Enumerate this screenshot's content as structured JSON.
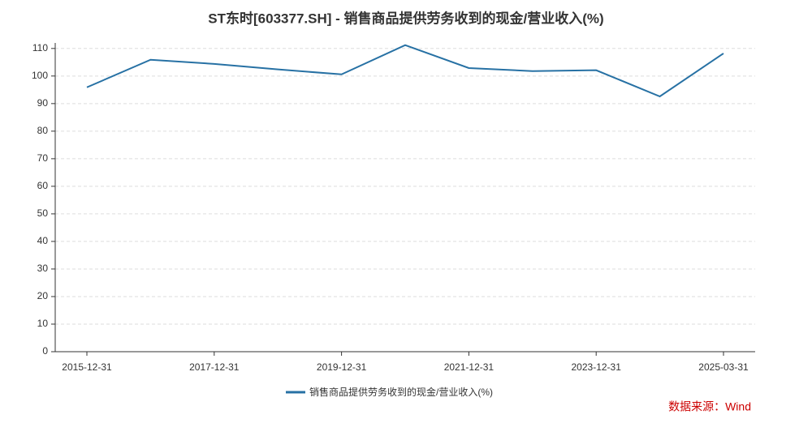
{
  "chart_data": {
    "type": "line",
    "title": "ST东时[603377.SH] - 销售商品提供劳务收到的现金/营业收入(%)",
    "categories": [
      "2015-12-31",
      null,
      "2017-12-31",
      null,
      "2019-12-31",
      null,
      "2021-12-31",
      null,
      "2023-12-31",
      null,
      "2025-03-31"
    ],
    "series": [
      {
        "name": "销售商品提供劳务收到的现金/营业收入(%)",
        "color": "#2771a4",
        "values": [
          95.9,
          105.9,
          104.4,
          102.4,
          100.6,
          111.2,
          102.9,
          101.8,
          102.1,
          92.6,
          108.2
        ]
      }
    ],
    "ylim": [
      0,
      112
    ],
    "yticks": [
      0,
      10,
      20,
      30,
      40,
      50,
      60,
      70,
      80,
      90,
      100,
      110
    ],
    "grid": true,
    "legend": "bottom",
    "source": "数据来源：Wind"
  }
}
